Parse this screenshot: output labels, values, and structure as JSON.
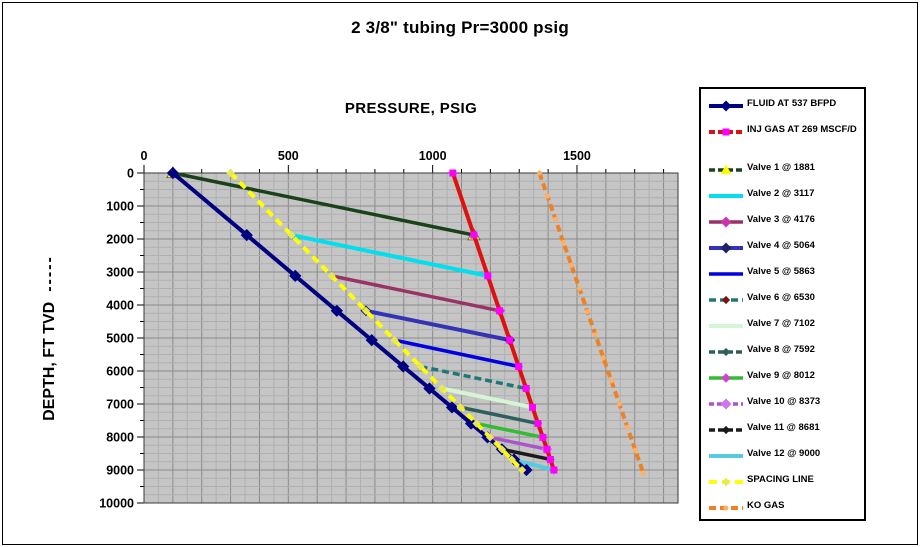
{
  "title": "2 3/8\" tubing Pr=3000 psig",
  "chart_data": {
    "type": "line",
    "title": "2 3/8\" tubing Pr=3000 psig",
    "x_axis": {
      "label": "PRESSURE, PSIG",
      "min": 0,
      "max": 1850,
      "ticks": [
        0,
        500,
        1000,
        1500
      ],
      "minor_tick_step": 100,
      "grid_minor": 50,
      "grid_major": 100
    },
    "y_axis": {
      "label": "DEPTH, FT TVD",
      "label_suffix": "-----",
      "min": 0,
      "max": 10000,
      "inverted": true,
      "ticks": [
        0,
        1000,
        2000,
        3000,
        4000,
        5000,
        6000,
        7000,
        8000,
        9000,
        10000
      ],
      "minor_tick_step": 500,
      "grid_minor": 250,
      "grid_major": 1000
    },
    "plot_bg": "#c5c5c5",
    "grid_minor_color": "#b0b0b0",
    "grid_major_color": "#8a8a8a",
    "valve_depths": [
      1881,
      3117,
      4176,
      5064,
      5863,
      6530,
      7102,
      7592,
      8012,
      8373,
      8681,
      9000
    ],
    "series": [
      {
        "label": "FLUID AT 537 BFPD",
        "color": "#000080",
        "width": 4,
        "dash": null,
        "marker": {
          "shape": "diamond",
          "color": "#000080",
          "size": 9,
          "at": "all"
        },
        "points": [
          [
            100,
            0
          ],
          [
            356,
            1881
          ],
          [
            524,
            3117
          ],
          [
            668,
            4176
          ],
          [
            789,
            5064
          ],
          [
            898,
            5863
          ],
          [
            989,
            6530
          ],
          [
            1067,
            7102
          ],
          [
            1133,
            7592
          ],
          [
            1190,
            8012
          ],
          [
            1240,
            8373
          ],
          [
            1282,
            8681
          ],
          [
            1325,
            9000
          ]
        ]
      },
      {
        "label": "INJ GAS AT 269 MSCF/D",
        "color": "#dd1111",
        "width": 4,
        "dash": null,
        "legend_dash": "6 3",
        "marker": {
          "shape": "square",
          "color": "#ff00ff",
          "size": 7,
          "at": "all"
        },
        "points": [
          [
            1070,
            0
          ],
          [
            1143,
            1881
          ],
          [
            1191,
            3117
          ],
          [
            1232,
            4176
          ],
          [
            1267,
            5064
          ],
          [
            1298,
            5863
          ],
          [
            1324,
            6530
          ],
          [
            1346,
            7102
          ],
          [
            1365,
            7592
          ],
          [
            1382,
            8012
          ],
          [
            1396,
            8373
          ],
          [
            1408,
            8681
          ],
          [
            1420,
            9000
          ]
        ]
      },
      {
        "label": "Valve 1 @ 1881",
        "color": "#1a421a",
        "width": 3.5,
        "dash": null,
        "legend_dash": "6 3",
        "marker": {
          "shape": "triangle",
          "color": "#ffff00",
          "size": 9,
          "at": "both_ends"
        },
        "points": [
          [
            100,
            0
          ],
          [
            1143,
            1881
          ]
        ]
      },
      {
        "label": "Valve 2 @ 3117",
        "color": "#00dfee",
        "width": 4,
        "dash": null,
        "legend_marker": false,
        "marker": {
          "shape": "diamond",
          "color": "#33cfff",
          "size": 7,
          "at": "end"
        },
        "points": [
          [
            511,
            1881
          ],
          [
            1191,
            3117
          ]
        ]
      },
      {
        "label": "Valve 3 @ 4176",
        "color": "#993366",
        "width": 3.5,
        "dash": null,
        "marker": {
          "shape": "diamond",
          "color": "#cc33aa",
          "size": 8,
          "at": "end"
        },
        "points": [
          [
            650,
            3117
          ],
          [
            1232,
            4176
          ]
        ]
      },
      {
        "label": "Valve 4 @ 5064",
        "color": "#3333b3",
        "width": 4,
        "dash": null,
        "marker": {
          "shape": "diamond",
          "color": "#222266",
          "size": 8,
          "at": "both_ends"
        },
        "points": [
          [
            769,
            4176
          ],
          [
            1267,
            5064
          ]
        ]
      },
      {
        "label": "Valve 5 @ 5863",
        "color": "#0000e0",
        "width": 3.5,
        "dash": null,
        "legend_marker": false,
        "marker": {
          "shape": "diamond",
          "color": "#0000a0",
          "size": 6,
          "at": "end"
        },
        "points": [
          [
            868,
            5064
          ],
          [
            1298,
            5863
          ]
        ]
      },
      {
        "label": "Valve 6 @ 6530",
        "color": "#1e7878",
        "width": 3.5,
        "dash": "7 4",
        "marker": {
          "shape": "diamond",
          "color": "#801010",
          "size": 6,
          "at": "end"
        },
        "points": [
          [
            958,
            5863
          ],
          [
            1324,
            6530
          ]
        ]
      },
      {
        "label": "Valve 7 @ 7102",
        "color": "#d6f5d6",
        "width": 4,
        "dash": null,
        "legend_marker": false,
        "marker": {
          "shape": "square",
          "color": "#d6f5d6",
          "size": 7,
          "at": "end"
        },
        "points": [
          [
            1033,
            6530
          ],
          [
            1346,
            7102
          ]
        ]
      },
      {
        "label": "Valve 8 @ 7592",
        "color": "#2d5f5f",
        "width": 3.5,
        "dash": null,
        "legend_dash": "6 3",
        "marker": {
          "shape": "diamond",
          "color": "#2d5f5f",
          "size": 6,
          "at": "end"
        },
        "points": [
          [
            1097,
            7102
          ],
          [
            1365,
            7592
          ]
        ]
      },
      {
        "label": "Valve 9 @ 8012",
        "color": "#33bb33",
        "width": 3.5,
        "dash": null,
        "marker": {
          "shape": "diamond",
          "color": "#cc44cc",
          "size": 7,
          "at": "end"
        },
        "points": [
          [
            1152,
            7592
          ],
          [
            1382,
            8012
          ]
        ]
      },
      {
        "label": "Valve 10 @ 8373",
        "color": "#aa55cc",
        "width": 3.5,
        "dash": null,
        "legend_dash": "5 3",
        "marker": {
          "shape": "diamond",
          "color": "#cc77ee",
          "size": 8,
          "at": "end"
        },
        "points": [
          [
            1199,
            8012
          ],
          [
            1396,
            8373
          ]
        ]
      },
      {
        "label": "Valve 11 @ 8681",
        "color": "#1a1a1a",
        "width": 3.5,
        "dash": null,
        "legend_dash": "6 3",
        "marker": {
          "shape": "diamond",
          "color": "#1a1a1a",
          "size": 6,
          "at": "end"
        },
        "points": [
          [
            1240,
            8373
          ],
          [
            1408,
            8681
          ]
        ]
      },
      {
        "label": "Valve 12 @ 9000",
        "color": "#55ccdd",
        "width": 4,
        "dash": null,
        "legend_marker": false,
        "marker": {
          "shape": "diamond",
          "color": "#7788ee",
          "size": 7,
          "at": "end"
        },
        "points": [
          [
            1274,
            8681
          ],
          [
            1420,
            9000
          ]
        ]
      },
      {
        "label": "SPACING LINE",
        "color": "#ffff00",
        "width": 4,
        "dash": "8 5",
        "marker": {
          "shape": "diamond",
          "color": "#e8e852",
          "size": 6,
          "at": "all"
        },
        "points": [
          [
            300,
            0
          ],
          [
            511,
            1881
          ],
          [
            650,
            3117
          ],
          [
            769,
            4176
          ],
          [
            868,
            5064
          ],
          [
            958,
            5863
          ],
          [
            1033,
            6530
          ],
          [
            1097,
            7102
          ],
          [
            1152,
            7592
          ],
          [
            1199,
            8012
          ],
          [
            1240,
            8373
          ],
          [
            1274,
            8681
          ],
          [
            1310,
            9000
          ]
        ]
      },
      {
        "label": "KO GAS",
        "color": "#ef8122",
        "width": 4,
        "dash": "7 4",
        "marker": {
          "shape": "circle",
          "color": "#ffb066",
          "size": 5,
          "at": "interval",
          "every": 700
        },
        "points": [
          [
            1370,
            0
          ],
          [
            1730,
            9100
          ]
        ]
      }
    ]
  }
}
